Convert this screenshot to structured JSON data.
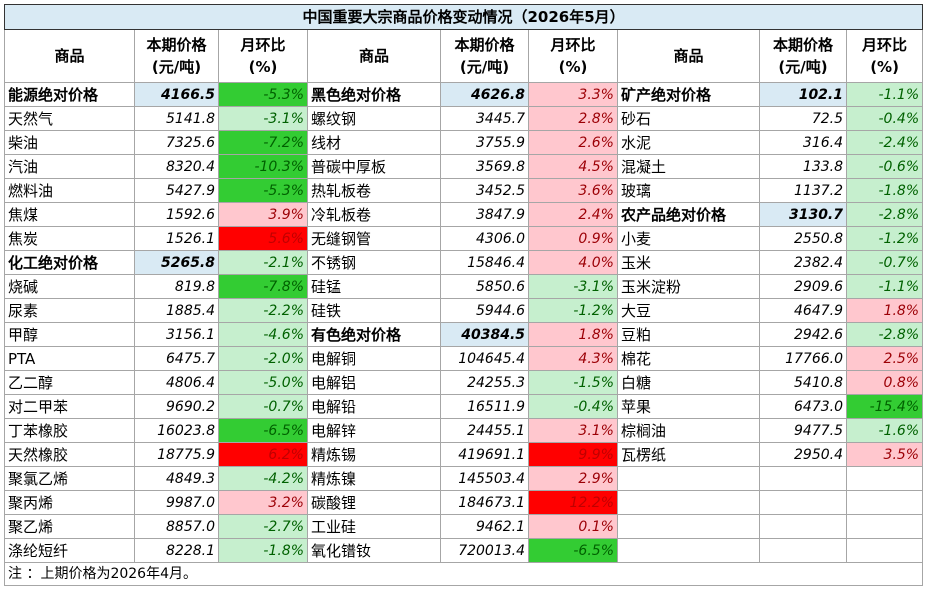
{
  "title": "中国重要大宗商品价格变动情况（2026年5月）",
  "headers": {
    "name": "商品",
    "price": [
      "本期价格",
      "(元/吨)"
    ],
    "change": [
      "月环比",
      "(%)"
    ]
  },
  "columns": [
    [
      {
        "name": "能源绝对价格",
        "price": "4166.5",
        "change": "-5.3%",
        "group": true,
        "tone": "dn2"
      },
      {
        "name": "天然气",
        "price": "5141.8",
        "change": "-3.1%",
        "tone": "dn1"
      },
      {
        "name": "柴油",
        "price": "7325.6",
        "change": "-7.2%",
        "tone": "dn2"
      },
      {
        "name": "汽油",
        "price": "8320.4",
        "change": "-10.3%",
        "tone": "dn2"
      },
      {
        "name": "燃料油",
        "price": "5427.9",
        "change": "-5.3%",
        "tone": "dn2"
      },
      {
        "name": "焦煤",
        "price": "1592.6",
        "change": "3.9%",
        "tone": "up1"
      },
      {
        "name": "焦炭",
        "price": "1526.1",
        "change": "5.6%",
        "tone": "up2"
      },
      {
        "name": "化工绝对价格",
        "price": "5265.8",
        "change": "-2.1%",
        "group": true,
        "tone": "dn1"
      },
      {
        "name": "烧碱",
        "price": "819.8",
        "change": "-7.8%",
        "tone": "dn2"
      },
      {
        "name": "尿素",
        "price": "1885.4",
        "change": "-2.2%",
        "tone": "dn1"
      },
      {
        "name": "甲醇",
        "price": "3156.1",
        "change": "-4.6%",
        "tone": "dn1"
      },
      {
        "name": "PTA",
        "price": "6475.7",
        "change": "-2.0%",
        "tone": "dn1"
      },
      {
        "name": "乙二醇",
        "price": "4806.4",
        "change": "-5.0%",
        "tone": "dn1"
      },
      {
        "name": "对二甲苯",
        "price": "9690.2",
        "change": "-0.7%",
        "tone": "dn1"
      },
      {
        "name": "丁苯橡胶",
        "price": "16023.8",
        "change": "-6.5%",
        "tone": "dn2"
      },
      {
        "name": "天然橡胶",
        "price": "18775.9",
        "change": "6.2%",
        "tone": "up2"
      },
      {
        "name": "聚氯乙烯",
        "price": "4849.3",
        "change": "-4.2%",
        "tone": "dn1"
      },
      {
        "name": "聚丙烯",
        "price": "9987.0",
        "change": "3.2%",
        "tone": "up1"
      },
      {
        "name": "聚乙烯",
        "price": "8857.0",
        "change": "-2.7%",
        "tone": "dn1"
      },
      {
        "name": "涤纶短纤",
        "price": "8228.1",
        "change": "-1.8%",
        "tone": "dn1"
      }
    ],
    [
      {
        "name": "黑色绝对价格",
        "price": "4626.8",
        "change": "3.3%",
        "group": true,
        "tone": "up1"
      },
      {
        "name": "螺纹钢",
        "price": "3445.7",
        "change": "2.8%",
        "tone": "up1"
      },
      {
        "name": "线材",
        "price": "3755.9",
        "change": "2.6%",
        "tone": "up1"
      },
      {
        "name": "普碳中厚板",
        "price": "3569.8",
        "change": "4.5%",
        "tone": "up1"
      },
      {
        "name": "热轧板卷",
        "price": "3452.5",
        "change": "3.6%",
        "tone": "up1"
      },
      {
        "name": "冷轧板卷",
        "price": "3847.9",
        "change": "2.4%",
        "tone": "up1"
      },
      {
        "name": "无缝钢管",
        "price": "4306.0",
        "change": "0.9%",
        "tone": "up1"
      },
      {
        "name": "不锈钢",
        "price": "15846.4",
        "change": "4.0%",
        "tone": "up1"
      },
      {
        "name": "硅锰",
        "price": "5850.6",
        "change": "-3.1%",
        "tone": "dn1"
      },
      {
        "name": "硅铁",
        "price": "5944.6",
        "change": "-1.2%",
        "tone": "dn1"
      },
      {
        "name": "有色绝对价格",
        "price": "40384.5",
        "change": "1.8%",
        "group": true,
        "tone": "up1"
      },
      {
        "name": "电解铜",
        "price": "104645.4",
        "change": "4.3%",
        "tone": "up1"
      },
      {
        "name": "电解铝",
        "price": "24255.3",
        "change": "-1.5%",
        "tone": "dn1"
      },
      {
        "name": "电解铅",
        "price": "16511.9",
        "change": "-0.4%",
        "tone": "dn1"
      },
      {
        "name": "电解锌",
        "price": "24455.1",
        "change": "3.1%",
        "tone": "up1"
      },
      {
        "name": "精炼锡",
        "price": "419691.1",
        "change": "9.9%",
        "tone": "up2"
      },
      {
        "name": "精炼镍",
        "price": "145503.4",
        "change": "2.9%",
        "tone": "up1"
      },
      {
        "name": "碳酸锂",
        "price": "184673.1",
        "change": "12.2%",
        "tone": "up2"
      },
      {
        "name": "工业硅",
        "price": "9462.1",
        "change": "0.1%",
        "tone": "up1"
      },
      {
        "name": "氧化镨钕",
        "price": "720013.4",
        "change": "-6.5%",
        "tone": "dn2"
      }
    ],
    [
      {
        "name": "矿产绝对价格",
        "price": "102.1",
        "change": "-1.1%",
        "group": true,
        "tone": "dn1"
      },
      {
        "name": "砂石",
        "price": "72.5",
        "change": "-0.4%",
        "tone": "dn1"
      },
      {
        "name": "水泥",
        "price": "316.4",
        "change": "-2.4%",
        "tone": "dn1"
      },
      {
        "name": "混凝土",
        "price": "133.8",
        "change": "-0.6%",
        "tone": "dn1"
      },
      {
        "name": "玻璃",
        "price": "1137.2",
        "change": "-1.8%",
        "tone": "dn1"
      },
      {
        "name": "农产品绝对价格",
        "price": "3130.7",
        "change": "-2.8%",
        "group": true,
        "tone": "dn1"
      },
      {
        "name": "小麦",
        "price": "2550.8",
        "change": "-1.2%",
        "tone": "dn1"
      },
      {
        "name": "玉米",
        "price": "2382.4",
        "change": "-0.7%",
        "tone": "dn1"
      },
      {
        "name": "玉米淀粉",
        "price": "2909.6",
        "change": "-1.1%",
        "tone": "dn1"
      },
      {
        "name": "大豆",
        "price": "4647.9",
        "change": "1.8%",
        "tone": "up1"
      },
      {
        "name": "豆粕",
        "price": "2942.6",
        "change": "-2.8%",
        "tone": "dn1"
      },
      {
        "name": "棉花",
        "price": "17766.0",
        "change": "2.5%",
        "tone": "up1"
      },
      {
        "name": "白糖",
        "price": "5410.8",
        "change": "0.8%",
        "tone": "up1"
      },
      {
        "name": "苹果",
        "price": "6473.0",
        "change": "-15.4%",
        "tone": "dn2"
      },
      {
        "name": "棕榈油",
        "price": "9477.5",
        "change": "-1.6%",
        "tone": "dn1"
      },
      {
        "name": "瓦楞纸",
        "price": "2950.4",
        "change": "3.5%",
        "tone": "up1"
      }
    ]
  ],
  "note": "注  ：上期价格为2026年4月。",
  "colors": {
    "header_fill": "#d9eaf4",
    "up_light": "#ffc7ce",
    "up_strong": "#ff0000",
    "down_light": "#c6efce",
    "down_strong": "#33cc33"
  }
}
